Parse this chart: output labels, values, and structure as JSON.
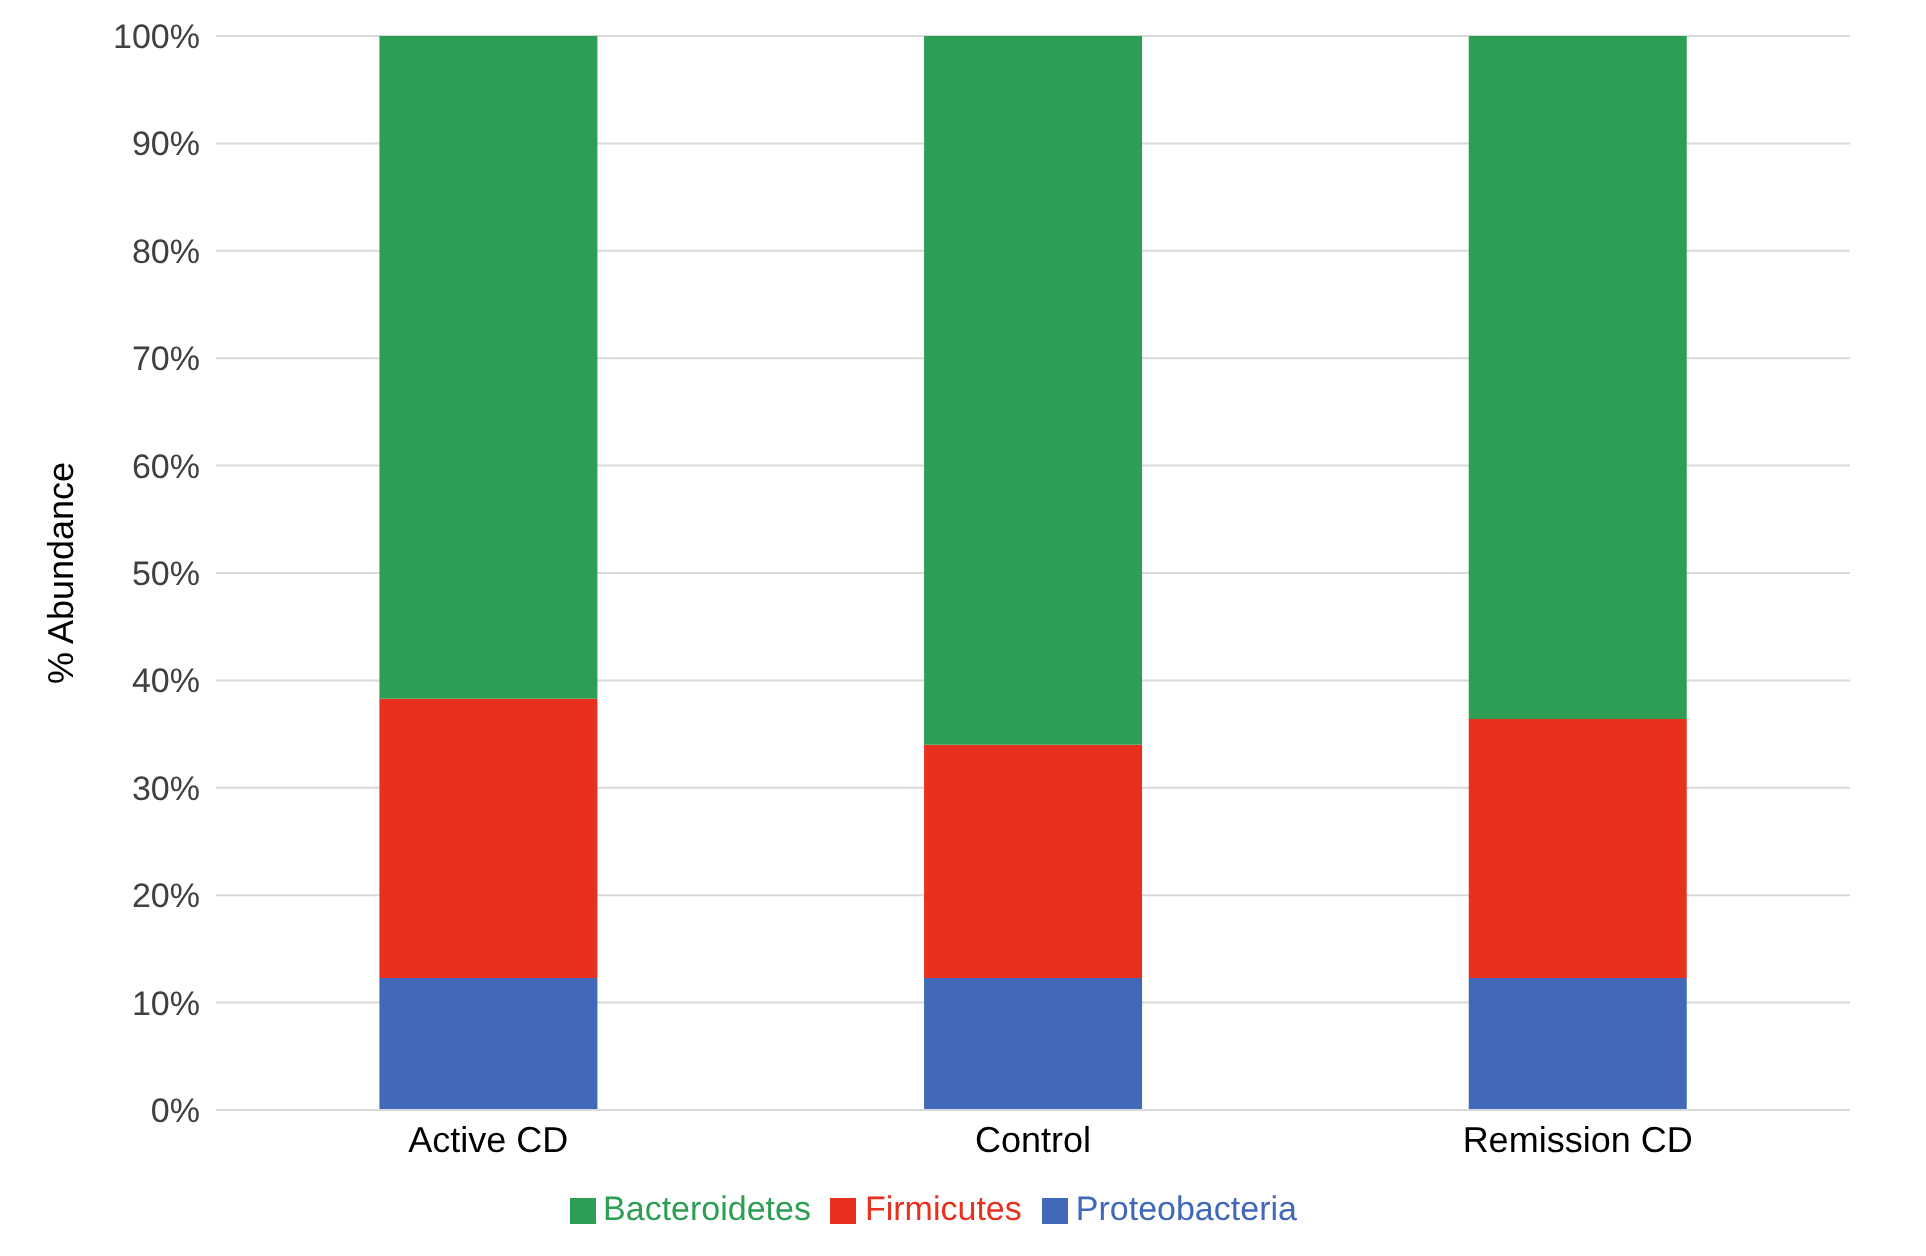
{
  "chart_data": {
    "type": "bar",
    "stacked": true,
    "ylabel": "% Abundance",
    "categories": [
      "Active CD",
      "Control",
      "Remission CD"
    ],
    "series": [
      {
        "name": "Proteobacteria",
        "color": "#4169b8",
        "values": [
          12.3,
          12.3,
          12.3
        ]
      },
      {
        "name": "Firmicutes",
        "color": "#e8301f",
        "values": [
          26.0,
          21.7,
          24.1
        ]
      },
      {
        "name": "Bacteroidetes",
        "color": "#2e9e55",
        "values": [
          61.7,
          66.0,
          63.6
        ]
      }
    ],
    "ylim": [
      0,
      100
    ],
    "yticks": [
      {
        "value": 0,
        "label": "0%"
      },
      {
        "value": 10,
        "label": "10%"
      },
      {
        "value": 20,
        "label": "20%"
      },
      {
        "value": 30,
        "label": "30%"
      },
      {
        "value": 40,
        "label": "40%"
      },
      {
        "value": 50,
        "label": "50%"
      },
      {
        "value": 60,
        "label": "60%"
      },
      {
        "value": 70,
        "label": "70%"
      },
      {
        "value": 80,
        "label": "80%"
      },
      {
        "value": 90,
        "label": "90%"
      },
      {
        "value": 100,
        "label": "100%"
      }
    ],
    "grid": "y",
    "legend": "bottom"
  }
}
